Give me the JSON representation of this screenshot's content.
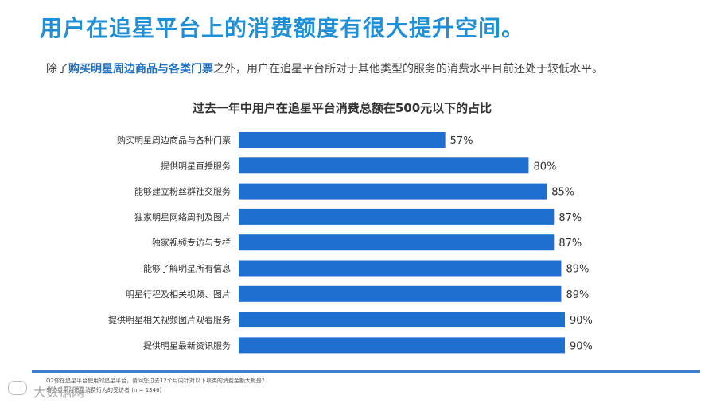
{
  "page": {
    "title": "用户在追星平台上的消费额度有很大提升空间。",
    "subtitle_prefix": "除了",
    "subtitle_highlight": "购买明星周边商品与各类门票",
    "subtitle_suffix": "之外，用户在追星平台所对于其他类型的服务的消费水平目前还处于较低水平。"
  },
  "chart_data": {
    "type": "bar",
    "orientation": "horizontal",
    "title": "过去一年中用户在追星平台消费总额在500元以下的占比",
    "categories": [
      "购买明星周边商品与各种门票",
      "提供明星直播服务",
      "能够建立粉丝群社交服务",
      "独家明星网络周刊及图片",
      "独家视频专访与专栏",
      "能够了解明星所有信息",
      "明星行程及相关视频、图片",
      "提供明星相关视频图片观看服务",
      "提供明星最新资讯服务"
    ],
    "values": [
      57,
      80,
      85,
      87,
      87,
      89,
      89,
      90,
      90
    ],
    "value_labels": [
      "57%",
      "80%",
      "85%",
      "87%",
      "87%",
      "89%",
      "89%",
      "90%",
      "90%"
    ],
    "unit": "%",
    "xlim": [
      0,
      100
    ],
    "color": "#1f6fd0"
  },
  "footer": {
    "note1": "Q2你在追星平台使用的追星平台，请问您过去12个月内针对以下项类的消费金额大概是？",
    "note2": "有追星平台追星消费行为的受访者 (n = 1346)",
    "watermark": "大数据网"
  }
}
